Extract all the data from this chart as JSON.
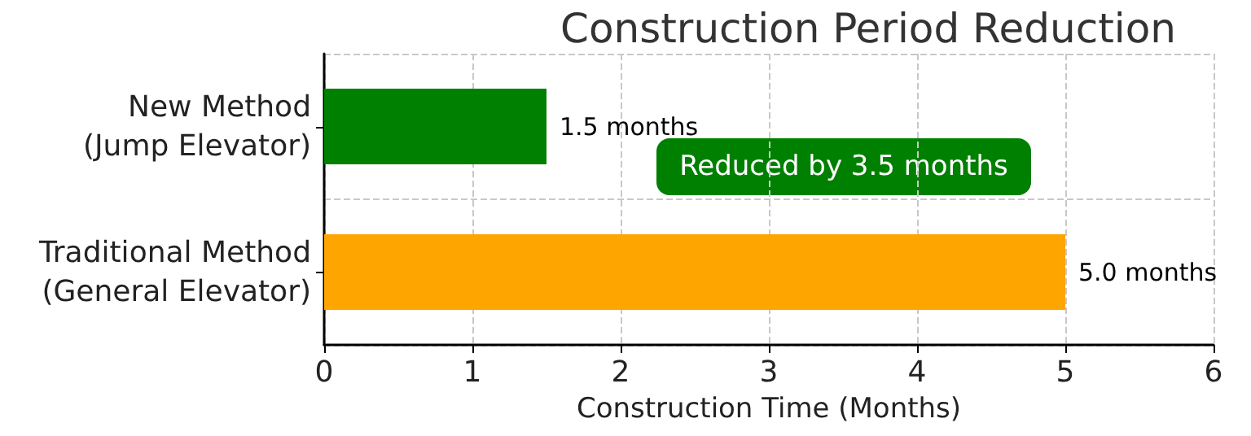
{
  "chart_data": {
    "type": "bar",
    "orientation": "horizontal",
    "title": "Construction Period Reduction",
    "xlabel": "Construction Time (Months)",
    "categories": [
      "New Method\n(Jump Elevator)",
      "Traditional Method\n(General Elevator)"
    ],
    "values": [
      1.5,
      5.0
    ],
    "colors": [
      "#008000",
      "#ffa500"
    ],
    "value_labels": [
      "1.5 months",
      "5.0 months"
    ],
    "annotations": [
      "Reduced by 3.5 months"
    ],
    "xlim": [
      0,
      6
    ],
    "xticks": [
      0,
      1,
      2,
      3,
      4,
      5,
      6
    ],
    "grid": true
  }
}
